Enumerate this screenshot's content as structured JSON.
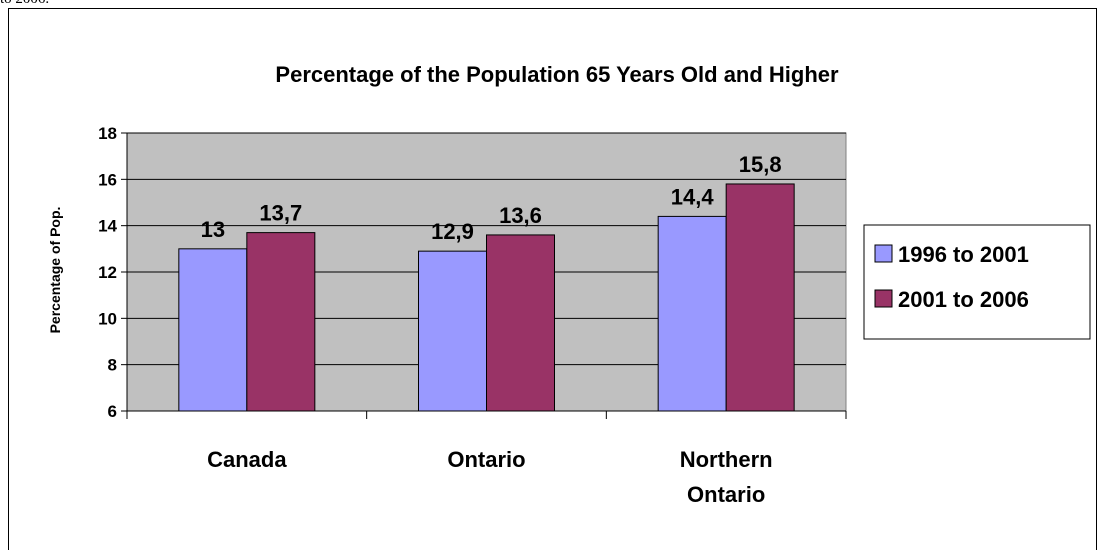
{
  "header_text": "to 2006.",
  "chart_data": {
    "type": "bar",
    "title": "Percentage of the Population 65 Years Old and Higher",
    "xlabel": "",
    "ylabel": "Percentage of Pop.",
    "ylim": [
      6,
      18
    ],
    "yticks": [
      "6",
      "8",
      "10",
      "12",
      "14",
      "16",
      "18"
    ],
    "categories": [
      [
        "Canada"
      ],
      [
        "Ontario"
      ],
      [
        "Northern",
        "Ontario"
      ]
    ],
    "series": [
      {
        "name": "1996 to 2001",
        "values": [
          13,
          12.9,
          14.4
        ],
        "labels": [
          "13",
          "12,9",
          "14,4"
        ],
        "color": "#9999ff"
      },
      {
        "name": "2001 to 2006",
        "values": [
          13.7,
          13.6,
          15.8
        ],
        "labels": [
          "13,7",
          "13,6",
          "15,8"
        ],
        "color": "#993366"
      }
    ],
    "plot_background": "#c0c0c0",
    "grid": true,
    "legend": "right"
  }
}
